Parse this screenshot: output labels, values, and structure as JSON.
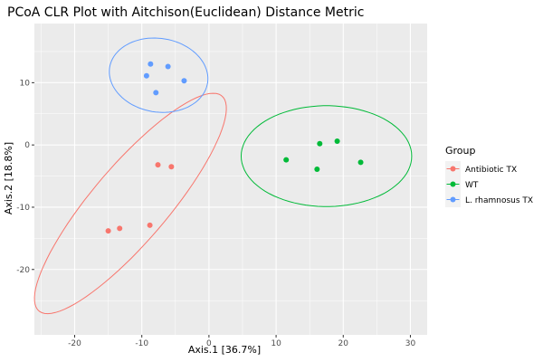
{
  "chart_data": {
    "type": "scatter",
    "title": "PCoA CLR Plot with Aitchison(Euclidean) Distance Metric",
    "xlabel": "Axis.1   [36.7%]",
    "ylabel": "Axis.2   [18.8%]",
    "xlim": [
      -26,
      32.5
    ],
    "ylim": [
      -30.5,
      19.5
    ],
    "x_ticks": [
      -20,
      -10,
      0,
      10,
      20,
      30
    ],
    "y_ticks": [
      -20,
      -10,
      0,
      10
    ],
    "grid": true,
    "legend_position": "right",
    "legend_title": "Group",
    "series": [
      {
        "name": "Antibiotic TX",
        "color": "#F8766D",
        "x": [
          -7.6,
          -5.6,
          -15.0,
          -13.3,
          -8.8
        ],
        "y": [
          -3.2,
          -3.5,
          -13.8,
          -13.4,
          -12.9
        ],
        "ellipse": {
          "cx": -11.7,
          "cy": -9.4,
          "rx": 22.0,
          "ry": 5.8,
          "angle_deg": 52
        }
      },
      {
        "name": "WT",
        "color": "#00BA38",
        "x": [
          11.5,
          16.5,
          19.1,
          22.6,
          16.1
        ],
        "y": [
          -2.4,
          0.2,
          0.6,
          -2.8,
          -3.9
        ],
        "ellipse": {
          "cx": 17.5,
          "cy": -1.8,
          "rx": 12.7,
          "ry": 8.1,
          "angle_deg": 0
        }
      },
      {
        "name": "L. rhamnosus TX",
        "color": "#619CFF",
        "x": [
          -8.7,
          -9.3,
          -6.1,
          -3.7,
          -7.9
        ],
        "y": [
          13.0,
          11.1,
          12.6,
          10.3,
          8.4
        ],
        "ellipse": {
          "cx": -7.5,
          "cy": 11.2,
          "rx": 7.4,
          "ry": 5.9,
          "angle_deg": -12
        }
      }
    ]
  }
}
